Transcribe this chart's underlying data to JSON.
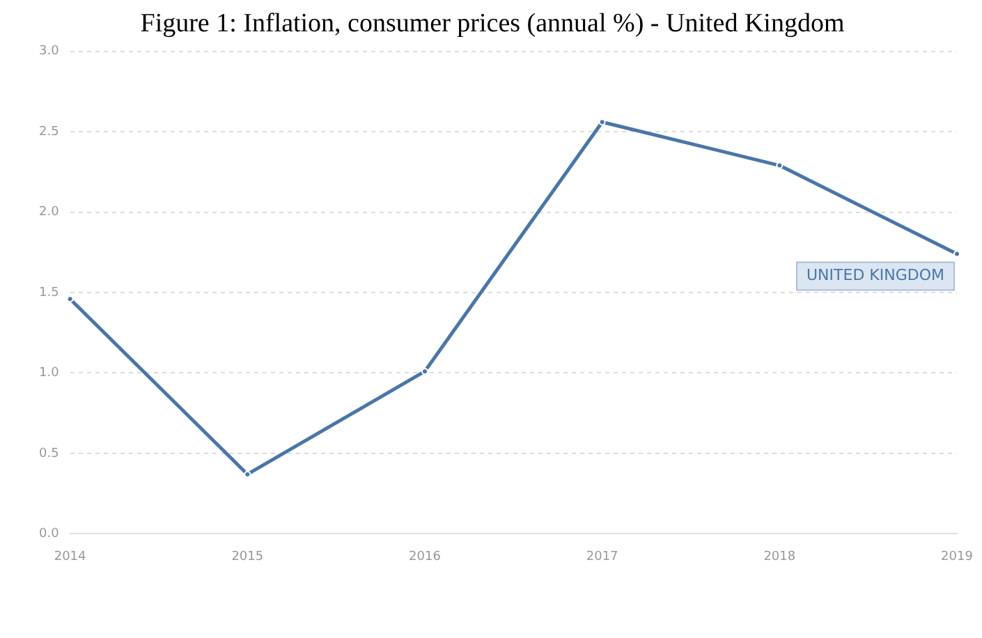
{
  "chart_data": {
    "type": "line",
    "title": "Figure 1: Inflation, consumer prices (annual %) - United Kingdom",
    "categories": [
      "2014",
      "2015",
      "2016",
      "2017",
      "2018",
      "2019"
    ],
    "series": [
      {
        "name": "UNITED KINGDOM",
        "color": "#4a76a8",
        "values": [
          1.46,
          0.37,
          1.01,
          2.56,
          2.29,
          1.74
        ]
      }
    ],
    "ylim": [
      0,
      3
    ],
    "yticks": [
      {
        "value": 0,
        "label": "0.0"
      },
      {
        "value": 0.5,
        "label": "0.5"
      },
      {
        "value": 1,
        "label": "1.0"
      },
      {
        "value": 1.5,
        "label": "1.5"
      },
      {
        "value": 2,
        "label": "2.0"
      },
      {
        "value": 2.5,
        "label": "2.5"
      },
      {
        "value": 3,
        "label": "3.0"
      }
    ],
    "grid": "y",
    "legend": false,
    "marker": "circle",
    "line_style": "solid"
  }
}
